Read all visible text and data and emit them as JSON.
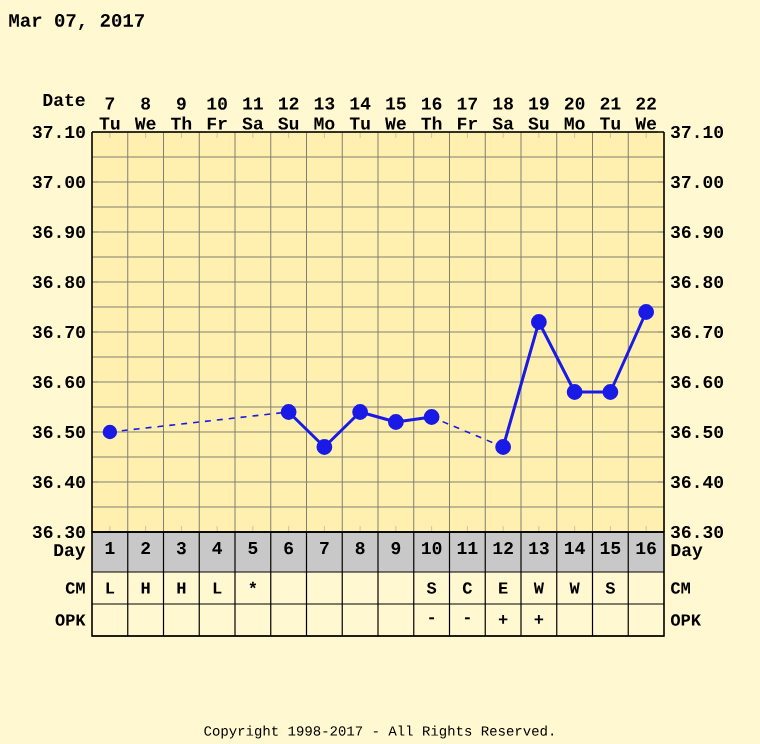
{
  "chart_data": [
    {
      "type": "line",
      "title": "Mar 07, 2017",
      "xlabel": "Day",
      "x2label": "Date",
      "xlim": [
        0.5,
        16.5
      ],
      "xticks": [
        1,
        2,
        3,
        4,
        5,
        6,
        7,
        8,
        9,
        10,
        11,
        12,
        13,
        14,
        15,
        16
      ],
      "x2lim": [
        6.5,
        22.5
      ],
      "x2ticks": [
        {
          "value": 7,
          "label": "7 Tu"
        },
        {
          "value": 8,
          "label": "8 We"
        },
        {
          "value": 9,
          "label": "9 Th"
        },
        {
          "value": 10,
          "label": "10 Fr"
        },
        {
          "value": 11,
          "label": "11 Sa"
        },
        {
          "value": 12,
          "label": "12 Su"
        },
        {
          "value": 13,
          "label": "13 Mo"
        },
        {
          "value": 14,
          "label": "14 Tu"
        },
        {
          "value": 15,
          "label": "15 We"
        },
        {
          "value": 16,
          "label": "16 Th"
        },
        {
          "value": 17,
          "label": "17 Fr"
        },
        {
          "value": 18,
          "label": "18 Sa"
        },
        {
          "value": 19,
          "label": "19 Su"
        },
        {
          "value": 20,
          "label": "20 Mo"
        },
        {
          "value": 21,
          "label": "21 Tu"
        },
        {
          "value": 22,
          "label": "22 We"
        }
      ],
      "ylim": [
        36.3,
        37.1
      ],
      "yticks": [
        {
          "value": 36.3,
          "label": "36.30"
        },
        {
          "value": 36.4,
          "label": "36.40"
        },
        {
          "value": 36.5,
          "label": "36.50"
        },
        {
          "value": 36.6,
          "label": "36.60"
        },
        {
          "value": 36.7,
          "label": "36.70"
        },
        {
          "value": 36.8,
          "label": "36.80"
        },
        {
          "value": 36.9,
          "label": "36.90"
        },
        {
          "value": 37.0,
          "label": "37.00"
        },
        {
          "value": 37.1,
          "label": "37.10"
        }
      ],
      "y2lim": [
        36.3,
        37.1
      ],
      "y2ticks": [
        {
          "value": 36.3,
          "label": "36.30"
        },
        {
          "value": 36.4,
          "label": "36.40"
        },
        {
          "value": 36.5,
          "label": "36.50"
        },
        {
          "value": 36.6,
          "label": "36.60"
        },
        {
          "value": 36.7,
          "label": "36.70"
        },
        {
          "value": 36.8,
          "label": "36.80"
        },
        {
          "value": 36.9,
          "label": "36.90"
        },
        {
          "value": 37.0,
          "label": "37.00"
        },
        {
          "value": 37.1,
          "label": "37.10"
        }
      ],
      "grid": true,
      "marker": "circle",
      "series": [
        {
          "color": "#1a1ae6",
          "line_style": "dashed",
          "x": [
            1,
            6
          ],
          "values": [
            36.5,
            36.54
          ]
        },
        {
          "color": "#1a1ae6",
          "line_style": "dashed",
          "x": [
            10,
            12
          ],
          "values": [
            36.53,
            36.47
          ]
        },
        {
          "color": "#1a1ae6",
          "line_style": "solid",
          "x": [
            6,
            7,
            8,
            9,
            10,
            11,
            12,
            13,
            14,
            15,
            16
          ],
          "values": [
            36.54,
            36.47,
            36.54,
            36.52,
            36.53,
            null,
            36.47,
            36.72,
            36.58,
            36.58,
            36.74
          ]
        }
      ],
      "annotations": [
        "Copyright 1998-2017 - All Rights Reserved."
      ]
    },
    {
      "type": "other",
      "categories": [
        null,
        null,
        null,
        null,
        null,
        null,
        null,
        null,
        null,
        null,
        null,
        null,
        null,
        null,
        null,
        null
      ],
      "y_categories": [
        "CM",
        "OPK"
      ],
      "cell_labels": [
        [
          "L",
          "H",
          "H",
          "L",
          "*",
          null,
          null,
          null,
          null,
          "S",
          "C",
          "E",
          "W",
          "W",
          "S",
          null
        ],
        [
          null,
          null,
          null,
          null,
          null,
          null,
          null,
          null,
          null,
          "-",
          "-",
          "+",
          "+",
          null,
          null,
          null
        ]
      ]
    }
  ]
}
